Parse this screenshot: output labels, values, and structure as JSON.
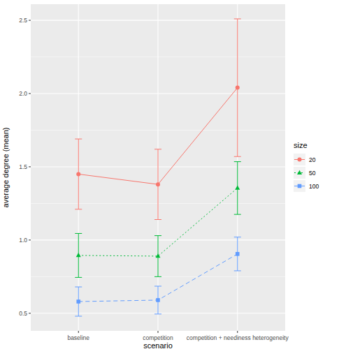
{
  "chart_data": {
    "type": "line",
    "x_label": "scenario",
    "y_label": "average degree (mean)",
    "categories": [
      "baseline",
      "competition",
      "competition + neediness heterogeneity"
    ],
    "ylim": [
      0.38,
      2.61
    ],
    "yticks": [
      0.5,
      {
        "value": 1,
        "label": "1.0"
      },
      1.5,
      {
        "value": 2,
        "label": "2.0"
      },
      2.5
    ],
    "grid": true,
    "legend": "right",
    "legend_title": "size",
    "series": [
      {
        "name": "20",
        "color": "#F8766D",
        "marker": "circle",
        "line_style": "solid",
        "values": [
          1.45,
          1.38,
          2.04
        ],
        "errors": [
          0.24,
          0.24,
          0.47
        ]
      },
      {
        "name": "50",
        "color": "#00BA38",
        "marker": "triangle",
        "line_style": "dotted",
        "values": [
          0.895,
          0.89,
          1.355
        ],
        "errors": [
          0.15,
          0.14,
          0.18
        ]
      },
      {
        "name": "100",
        "color": "#619CFF",
        "marker": "square",
        "line_style": "dashed",
        "values": [
          0.58,
          0.59,
          0.905
        ],
        "errors": [
          0.1,
          0.095,
          0.115
        ]
      }
    ]
  }
}
